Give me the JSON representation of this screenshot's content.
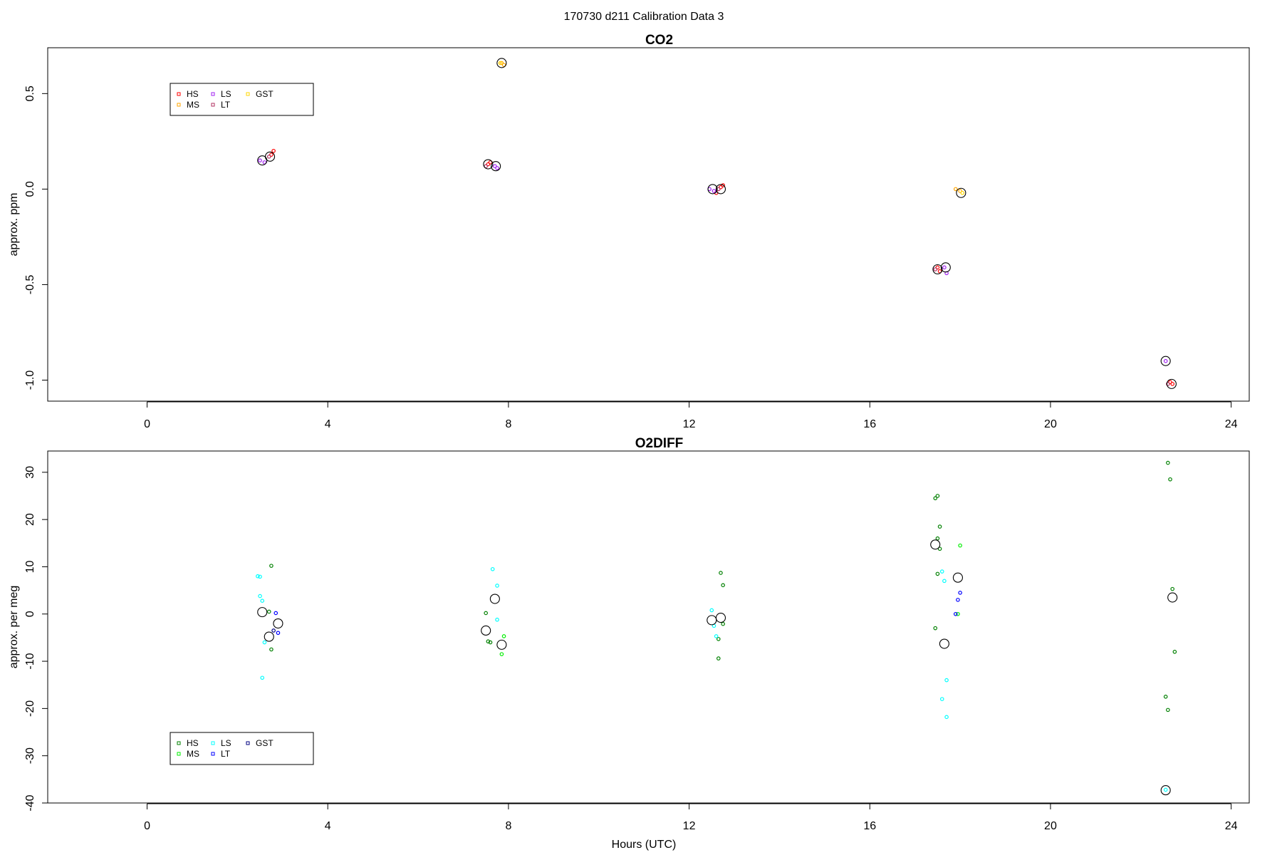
{
  "title": "170730   d211   Calibration Data 3",
  "xlabel": "Hours (UTC)",
  "chart_data": [
    {
      "type": "scatter",
      "title": "CO2",
      "ylabel": "approx. ppm",
      "xlim": [
        -2.2,
        24.4
      ],
      "ylim": [
        -1.11,
        0.74
      ],
      "x_ticks": [
        0,
        4,
        8,
        12,
        16,
        20,
        24
      ],
      "y_ticks": [
        -1.0,
        -0.5,
        0.0,
        0.5
      ],
      "y_tick_labels": [
        "-1.0",
        "-0.5",
        "0.0",
        "0.5"
      ],
      "legend": {
        "position": "top-left",
        "entries": [
          {
            "name": "HS",
            "color": "#ff0000"
          },
          {
            "name": "MS",
            "color": "#ffa500"
          },
          {
            "name": "LS",
            "color": "#a020f0"
          },
          {
            "name": "LT",
            "color": "#b03060"
          },
          {
            "name": "GST",
            "color": "#ffd700"
          }
        ]
      },
      "series": [
        {
          "name": "HS",
          "color": "#ff0000",
          "points": [
            [
              2.75,
              0.18
            ],
            [
              2.8,
              0.2
            ],
            [
              7.55,
              0.13
            ],
            [
              7.6,
              0.14
            ],
            [
              12.7,
              0.01
            ],
            [
              12.75,
              0.02
            ],
            [
              12.6,
              -0.02
            ],
            [
              17.5,
              -0.41
            ],
            [
              17.55,
              -0.43
            ],
            [
              22.65,
              -1.01
            ],
            [
              22.7,
              -1.02
            ]
          ]
        },
        {
          "name": "MS",
          "color": "#ffa500",
          "points": [
            [
              7.85,
              0.66
            ],
            [
              7.9,
              0.65
            ],
            [
              17.9,
              0.0
            ],
            [
              18.0,
              -0.01
            ]
          ]
        },
        {
          "name": "LS",
          "color": "#a020f0",
          "points": [
            [
              2.5,
              0.15
            ],
            [
              2.6,
              0.14
            ],
            [
              7.7,
              0.12
            ],
            [
              7.75,
              0.11
            ],
            [
              12.45,
              0.0
            ],
            [
              12.55,
              -0.01
            ],
            [
              17.65,
              -0.41
            ],
            [
              17.7,
              -0.44
            ],
            [
              22.55,
              -0.9
            ]
          ]
        },
        {
          "name": "LT",
          "color": "#b03060",
          "points": [
            [
              2.7,
              0.17
            ],
            [
              7.5,
              0.12
            ],
            [
              12.65,
              0.0
            ],
            [
              17.45,
              -0.42
            ],
            [
              22.6,
              -1.02
            ]
          ]
        },
        {
          "name": "GST",
          "color": "#ffd700",
          "points": [
            [
              7.82,
              0.66
            ],
            [
              18.05,
              -0.02
            ]
          ]
        }
      ],
      "mean_points": [
        [
          2.55,
          0.15
        ],
        [
          2.72,
          0.17
        ],
        [
          7.55,
          0.13
        ],
        [
          7.72,
          0.12
        ],
        [
          7.85,
          0.66
        ],
        [
          12.52,
          0.0
        ],
        [
          12.7,
          0.0
        ],
        [
          17.5,
          -0.42
        ],
        [
          17.68,
          -0.41
        ],
        [
          18.02,
          -0.02
        ],
        [
          22.55,
          -0.9
        ],
        [
          22.68,
          -1.02
        ]
      ]
    },
    {
      "type": "scatter",
      "title": "O2DIFF",
      "ylabel": "approx. per meg",
      "xlim": [
        -2.2,
        24.4
      ],
      "ylim": [
        -40,
        34.5
      ],
      "x_ticks": [
        0,
        4,
        8,
        12,
        16,
        20,
        24
      ],
      "y_ticks": [
        -40,
        -30,
        -20,
        -10,
        0,
        10,
        20,
        30
      ],
      "y_tick_labels": [
        "-40",
        "-30",
        "-20",
        "-10",
        "0",
        "10",
        "20",
        "30"
      ],
      "legend": {
        "position": "bottom-left",
        "entries": [
          {
            "name": "HS",
            "color": "#008000"
          },
          {
            "name": "MS",
            "color": "#00ee00"
          },
          {
            "name": "LS",
            "color": "#00ffff"
          },
          {
            "name": "LT",
            "color": "#0000ff"
          },
          {
            "name": "GST",
            "color": "#000080"
          }
        ]
      },
      "series": [
        {
          "name": "HS",
          "color": "#008000",
          "points": [
            [
              2.75,
              10.2
            ],
            [
              2.7,
              0.5
            ],
            [
              2.75,
              -7.5
            ],
            [
              7.5,
              0.2
            ],
            [
              7.55,
              -5.8
            ],
            [
              7.6,
              -6.0
            ],
            [
              12.7,
              8.7
            ],
            [
              12.75,
              6.1
            ],
            [
              12.65,
              -5.3
            ],
            [
              12.65,
              -9.4
            ],
            [
              12.75,
              -2.1
            ],
            [
              17.45,
              24.5
            ],
            [
              17.5,
              25.0
            ],
            [
              17.55,
              18.5
            ],
            [
              17.5,
              16.0
            ],
            [
              17.55,
              13.8
            ],
            [
              17.5,
              8.5
            ],
            [
              17.45,
              -3.0
            ],
            [
              22.6,
              32.0
            ],
            [
              22.65,
              28.5
            ],
            [
              22.7,
              5.3
            ],
            [
              22.75,
              -8.0
            ],
            [
              22.55,
              -17.5
            ],
            [
              22.6,
              -20.3
            ]
          ]
        },
        {
          "name": "MS",
          "color": "#00ee00",
          "points": [
            [
              7.9,
              -4.7
            ],
            [
              7.85,
              -8.5
            ],
            [
              18.0,
              14.5
            ],
            [
              17.95,
              0.0
            ]
          ]
        },
        {
          "name": "LS",
          "color": "#00ffff",
          "points": [
            [
              2.45,
              8.0
            ],
            [
              2.5,
              7.9
            ],
            [
              2.5,
              3.8
            ],
            [
              2.55,
              2.8
            ],
            [
              2.6,
              -6.0
            ],
            [
              2.55,
              -13.5
            ],
            [
              7.65,
              9.5
            ],
            [
              7.75,
              6.0
            ],
            [
              7.75,
              -1.2
            ],
            [
              12.5,
              0.8
            ],
            [
              12.55,
              -2.5
            ],
            [
              12.6,
              -4.7
            ],
            [
              17.6,
              9.0
            ],
            [
              17.65,
              7.0
            ],
            [
              17.7,
              -14.0
            ],
            [
              17.6,
              -18.0
            ],
            [
              17.7,
              -21.8
            ],
            [
              22.55,
              -37.2
            ]
          ]
        },
        {
          "name": "LT",
          "color": "#0000ff",
          "points": [
            [
              2.85,
              0.2
            ],
            [
              2.9,
              -4.0
            ],
            [
              18.0,
              4.5
            ],
            [
              17.95,
              3.0
            ],
            [
              17.9,
              0.0
            ]
          ]
        },
        {
          "name": "GST",
          "color": "#000080",
          "points": [
            [
              2.8,
              -3.5
            ]
          ]
        }
      ],
      "mean_points": [
        [
          2.55,
          0.4
        ],
        [
          2.7,
          -4.8
        ],
        [
          2.9,
          -2.0
        ],
        [
          7.5,
          -3.5
        ],
        [
          7.7,
          3.2
        ],
        [
          7.85,
          -6.5
        ],
        [
          12.5,
          -1.3
        ],
        [
          12.7,
          -0.8
        ],
        [
          17.45,
          14.7
        ],
        [
          17.65,
          -6.3
        ],
        [
          17.95,
          7.7
        ],
        [
          22.55,
          -37.3
        ],
        [
          22.7,
          3.5
        ]
      ]
    }
  ]
}
